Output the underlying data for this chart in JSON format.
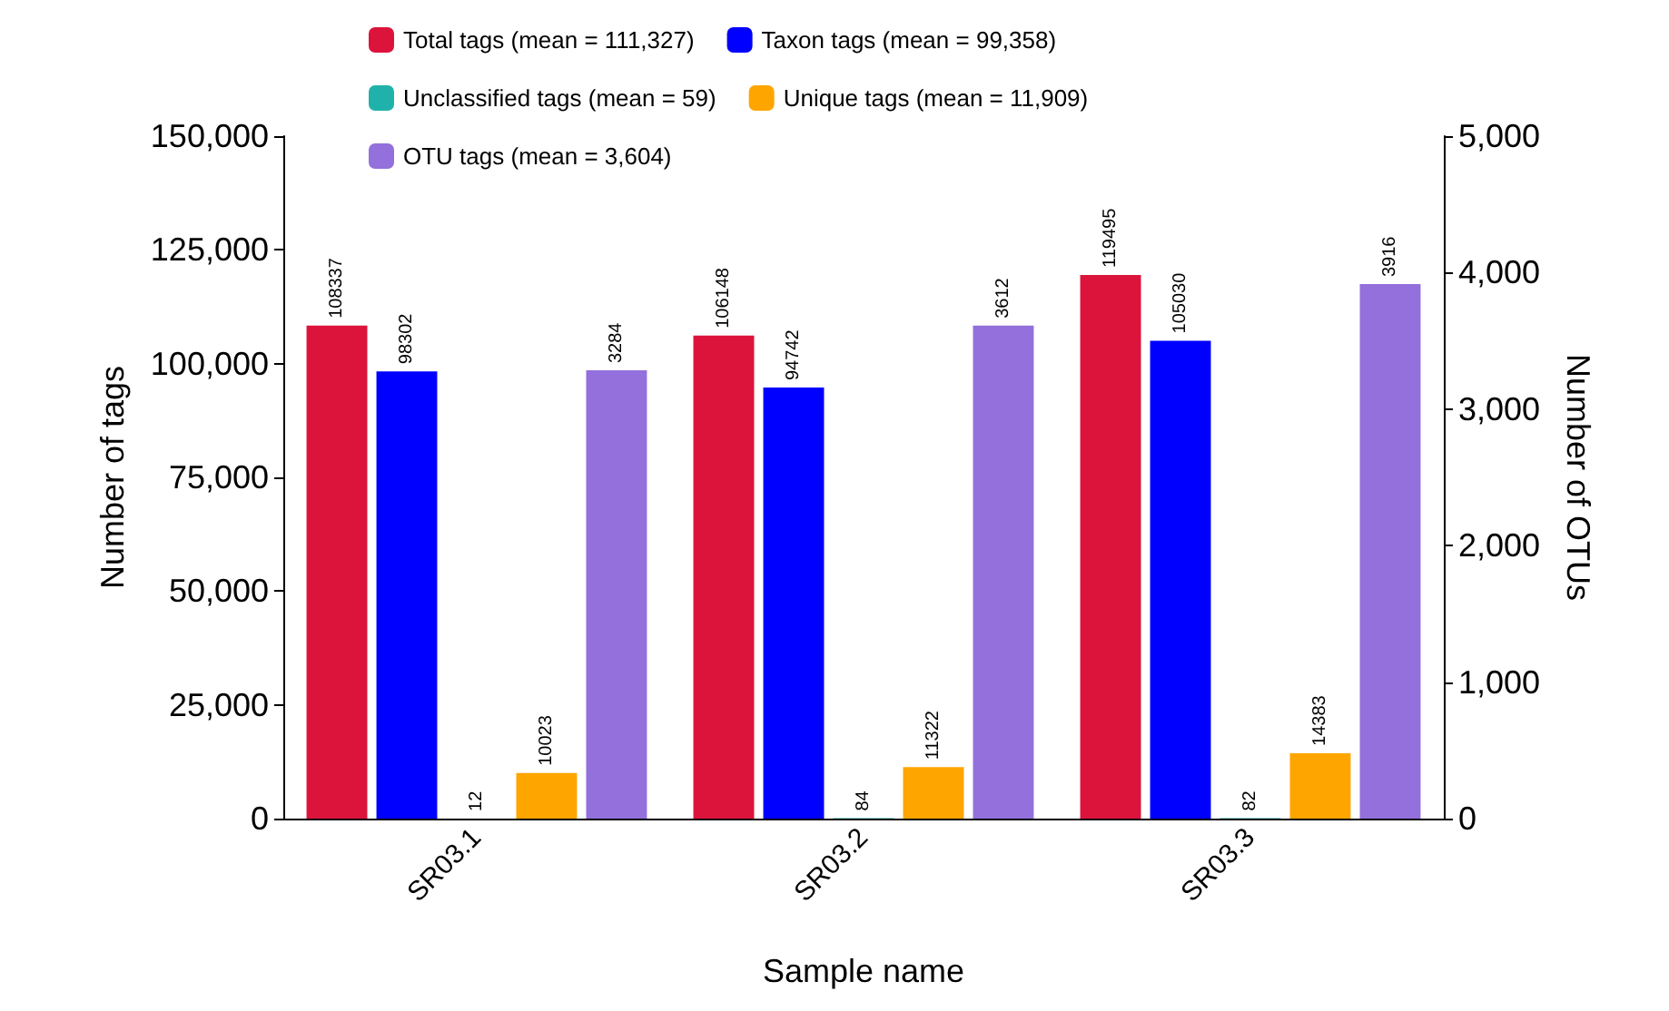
{
  "chart_data": {
    "type": "bar",
    "xlabel": "Sample name",
    "ylabel": "Number of tags",
    "y2label": "Number of OTUs",
    "categories": [
      "SR03.1",
      "SR03.2",
      "SR03.3"
    ],
    "series": [
      {
        "name": "Total tags (mean = 111,327)",
        "color": "#dc143c",
        "values": [
          108337,
          106148,
          119495
        ]
      },
      {
        "name": "Taxon tags (mean = 99,358)",
        "color": "#0000ff",
        "values": [
          98302,
          94742,
          105030
        ]
      },
      {
        "name": "Unclassified tags (mean = 59)",
        "color": "#20b2aa",
        "values": [
          12,
          84,
          82
        ]
      },
      {
        "name": "Unique tags (mean = 11,909)",
        "color": "#ffa500",
        "values": [
          10023,
          11322,
          14383
        ]
      },
      {
        "name": "OTU tags (mean = 3,604)",
        "color": "#9370db",
        "values": [
          3284,
          3612,
          3916
        ],
        "axis": "y2"
      }
    ],
    "ylim": [
      0,
      150000
    ],
    "yticks": [
      {
        "value": 0,
        "label": "0"
      },
      {
        "value": 25000,
        "label": "25,000"
      },
      {
        "value": 50000,
        "label": "50,000"
      },
      {
        "value": 75000,
        "label": "75,000"
      },
      {
        "value": 100000,
        "label": "100,000"
      },
      {
        "value": 125000,
        "label": "125,000"
      },
      {
        "value": 150000,
        "label": "150,000"
      }
    ],
    "y2lim": [
      0,
      5000
    ],
    "y2ticks": [
      {
        "value": 0,
        "label": "0"
      },
      {
        "value": 1000,
        "label": "1,000"
      },
      {
        "value": 2000,
        "label": "2,000"
      },
      {
        "value": 3000,
        "label": "3,000"
      },
      {
        "value": 4000,
        "label": "4,000"
      },
      {
        "value": 5000,
        "label": "5,000"
      }
    ],
    "data_labels": true,
    "grid": false,
    "legend": "top"
  }
}
